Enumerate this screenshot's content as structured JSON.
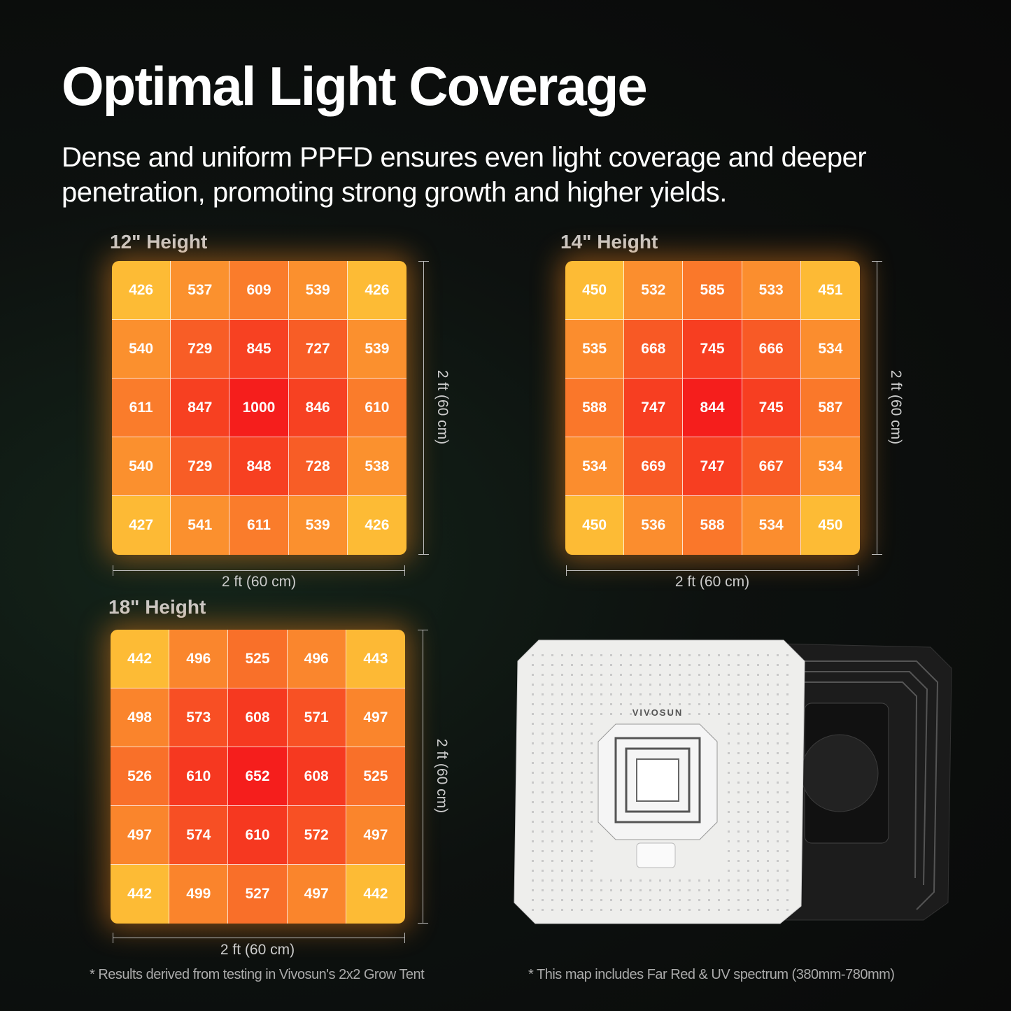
{
  "title": "Optimal Light Coverage",
  "subtitle": "Dense and uniform PPFD ensures even light coverage and deeper penetration, promoting strong growth and higher yields.",
  "colors": {
    "low": "#fdbb35",
    "high": "#f51e1c",
    "background": "#0b0d0c"
  },
  "chart_data": [
    {
      "type": "heatmap",
      "title": "12\" Height",
      "xlabel": "2 ft (60 cm)",
      "ylabel": "2 ft (60 cm)",
      "values": [
        [
          426,
          537,
          609,
          539,
          426
        ],
        [
          540,
          729,
          845,
          727,
          539
        ],
        [
          611,
          847,
          1000,
          846,
          610
        ],
        [
          540,
          729,
          848,
          728,
          538
        ],
        [
          427,
          541,
          611,
          539,
          426
        ]
      ]
    },
    {
      "type": "heatmap",
      "title": "14\" Height",
      "xlabel": "2 ft (60 cm)",
      "ylabel": "2 ft (60 cm)",
      "values": [
        [
          450,
          532,
          585,
          533,
          451
        ],
        [
          535,
          668,
          745,
          666,
          534
        ],
        [
          588,
          747,
          844,
          745,
          587
        ],
        [
          534,
          669,
          747,
          667,
          534
        ],
        [
          450,
          536,
          588,
          534,
          450
        ]
      ]
    },
    {
      "type": "heatmap",
      "title": "18\" Height",
      "xlabel": "2 ft (60 cm)",
      "ylabel": "2 ft (60 cm)",
      "values": [
        [
          442,
          496,
          525,
          496,
          443
        ],
        [
          498,
          573,
          608,
          571,
          497
        ],
        [
          526,
          610,
          652,
          608,
          525
        ],
        [
          497,
          574,
          610,
          572,
          497
        ],
        [
          442,
          499,
          527,
          497,
          442
        ]
      ]
    }
  ],
  "product": {
    "brand": "VIVOSUN"
  },
  "notes": [
    "* Results derived from testing in Vivosun's 2x2 Grow Tent",
    "* This map includes Far Red & UV spectrum (380mm-780mm)"
  ]
}
